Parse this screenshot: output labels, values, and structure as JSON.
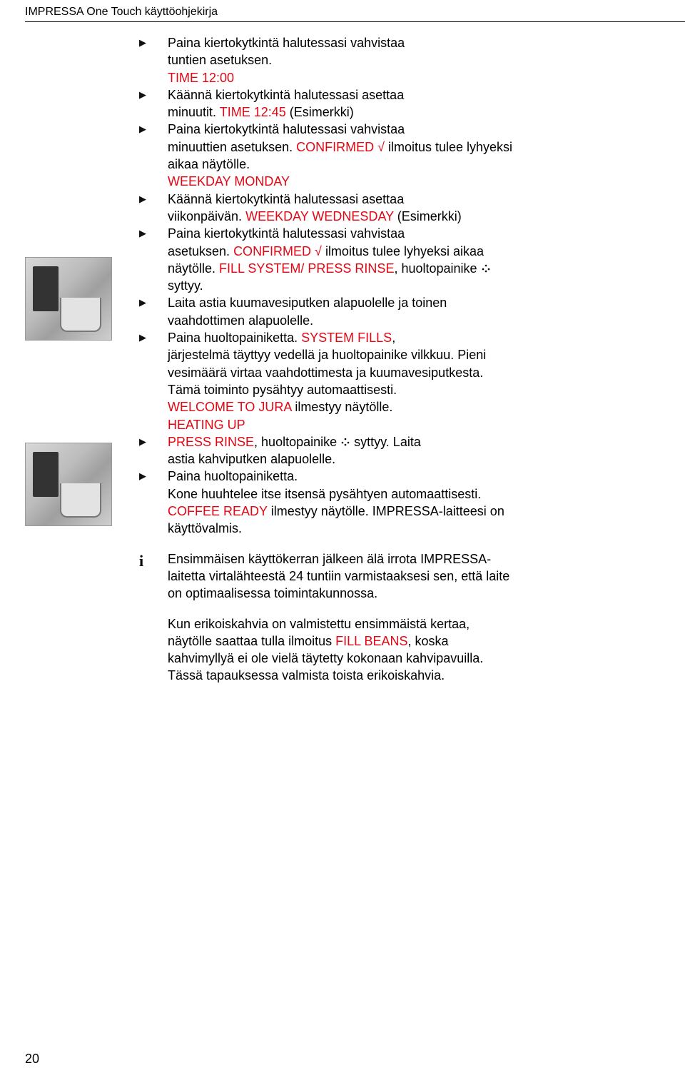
{
  "header": "IMPRESSA One Touch käyttöohjekirja",
  "page_number": "20",
  "colors": {
    "red": "#e30613",
    "text": "#000000",
    "bg": "#ffffff"
  },
  "lines": [
    {
      "marker": "tri",
      "runs": [
        {
          "t": "Paina kiertokytkintä halutessasi vahvistaa"
        }
      ]
    },
    {
      "marker": "",
      "runs": [
        {
          "t": "tuntien asetuksen."
        }
      ]
    },
    {
      "marker": "",
      "runs": [
        {
          "t": "TIME 12:00",
          "c": "red"
        }
      ]
    },
    {
      "marker": "tri",
      "runs": [
        {
          "t": "Käännä kiertokytkintä halutessasi asettaa"
        }
      ]
    },
    {
      "marker": "",
      "runs": [
        {
          "t": "minuutit. "
        },
        {
          "t": "TIME 12:45",
          "c": "red"
        },
        {
          "t": " (Esimerkki)"
        }
      ]
    },
    {
      "marker": "tri",
      "runs": [
        {
          "t": "Paina kiertokytkintä halutessasi vahvistaa"
        }
      ]
    },
    {
      "marker": "",
      "runs": [
        {
          "t": "minuuttien asetuksen. "
        },
        {
          "t": "CONFIRMED √",
          "c": "red"
        },
        {
          "t": " ilmoitus tulee lyhyeksi"
        }
      ]
    },
    {
      "marker": "",
      "runs": [
        {
          "t": "aikaa näytölle."
        }
      ]
    },
    {
      "marker": "",
      "runs": [
        {
          "t": "WEEKDAY MONDAY",
          "c": "red"
        }
      ]
    },
    {
      "marker": "tri",
      "runs": [
        {
          "t": "Käännä kiertokytkintä halutessasi asettaa"
        }
      ]
    },
    {
      "marker": "",
      "runs": [
        {
          "t": "viikonpäivän. "
        },
        {
          "t": "WEEKDAY WEDNESDAY",
          "c": "red"
        },
        {
          "t": " (Esimerkki)"
        }
      ]
    },
    {
      "marker": "tri",
      "runs": [
        {
          "t": "Paina kiertokytkintä halutessasi vahvistaa"
        }
      ]
    },
    {
      "marker": "",
      "runs": [
        {
          "t": "asetuksen. "
        },
        {
          "t": "CONFIRMED √",
          "c": "red"
        },
        {
          "t": " ilmoitus tulee lyhyeksi aikaa"
        }
      ]
    },
    {
      "marker": "",
      "runs": [
        {
          "t": "näytölle. "
        },
        {
          "t": "FILL SYSTEM/ PRESS RINSE",
          "c": "red"
        },
        {
          "t": ", huoltopainike "
        },
        {
          "t": "",
          "dots": true
        }
      ]
    },
    {
      "marker": "",
      "runs": [
        {
          "t": "syttyy."
        }
      ]
    },
    {
      "marker": "tri",
      "runs": [
        {
          "t": "Laita astia kuumavesiputken alapuolelle ja toinen"
        }
      ]
    },
    {
      "marker": "",
      "runs": [
        {
          "t": "vaahdottimen alapuolelle."
        }
      ]
    },
    {
      "marker": "tri",
      "runs": [
        {
          "t": "Paina huoltopainiketta. "
        },
        {
          "t": "SYSTEM FILLS",
          "c": "red"
        },
        {
          "t": ","
        }
      ]
    },
    {
      "marker": "",
      "runs": [
        {
          "t": "järjestelmä täyttyy vedellä ja huoltopainike vilkkuu. Pieni"
        }
      ]
    },
    {
      "marker": "",
      "runs": [
        {
          "t": "vesimäärä virtaa vaahdottimesta ja kuumavesiputkesta."
        }
      ]
    },
    {
      "marker": "",
      "runs": [
        {
          "t": "Tämä toiminto pysähtyy automaattisesti."
        }
      ]
    },
    {
      "marker": "",
      "runs": [
        {
          "t": "WELCOME TO JURA",
          "c": "red"
        },
        {
          "t": " ilmestyy näytölle."
        }
      ]
    },
    {
      "marker": "",
      "runs": [
        {
          "t": "HEATING UP",
          "c": "red"
        }
      ]
    },
    {
      "marker": "tri",
      "runs": [
        {
          "t": " "
        },
        {
          "t": "PRESS RINSE",
          "c": "red"
        },
        {
          "t": ",  huoltopainike "
        },
        {
          "t": "",
          "dots": true
        },
        {
          "t": "  syttyy. Laita"
        }
      ]
    },
    {
      "marker": "",
      "runs": [
        {
          "t": "astia kahviputken alapuolelle."
        }
      ]
    },
    {
      "marker": "tri",
      "runs": [
        {
          "t": "Paina huoltopainiketta."
        }
      ]
    },
    {
      "marker": "",
      "runs": [
        {
          "t": "Kone huuhtelee itse itsensä pysähtyen automaattisesti."
        }
      ]
    },
    {
      "marker": "",
      "runs": [
        {
          "t": "COFFEE READY",
          "c": "red"
        },
        {
          "t": " ilmestyy näytölle. IMPRESSA-laitteesi on"
        }
      ]
    },
    {
      "marker": "",
      "runs": [
        {
          "t": "käyttövalmis."
        }
      ]
    }
  ],
  "info_block": [
    "Ensimmäisen käyttökerran jälkeen älä irrota IMPRESSA-",
    "laitetta virtalähteestä 24 tuntiin varmistaaksesi sen, että laite",
    "on optimaalisessa toimintakunnossa."
  ],
  "last_para": [
    {
      "runs": [
        {
          "t": "Kun erikoiskahvia on valmistettu ensimmäistä kertaa,"
        }
      ]
    },
    {
      "runs": [
        {
          "t": "näytölle saattaa tulla ilmoitus "
        },
        {
          "t": "FILL BEANS",
          "c": "red"
        },
        {
          "t": ", koska"
        }
      ]
    },
    {
      "runs": [
        {
          "t": "kahvimyllyä ei ole vielä täytetty kokonaan kahvipavuilla."
        }
      ]
    },
    {
      "runs": [
        {
          "t": "Tässä tapauksessa valmista toista erikoiskahvia."
        }
      ]
    }
  ]
}
